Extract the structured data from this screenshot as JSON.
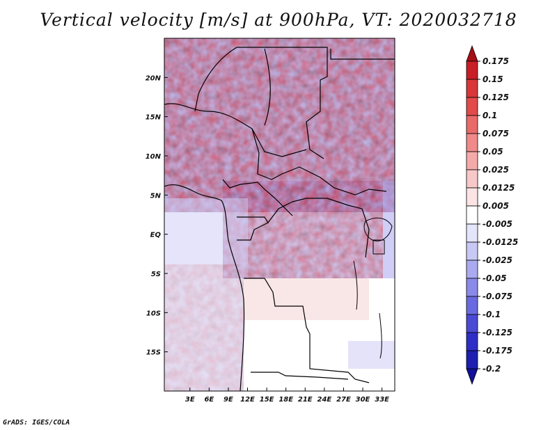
{
  "title": "Vertical velocity [m/s] at 900hPa, VT: 2020032718",
  "credit": "GrADS: IGES/COLA",
  "map": {
    "lon_range": [
      -1,
      35
    ],
    "lat_range": [
      -20,
      25
    ],
    "x_ticks": [
      "3E",
      "6E",
      "9E",
      "12E",
      "15E",
      "18E",
      "21E",
      "24E",
      "27E",
      "30E",
      "33E"
    ],
    "x_tick_values": [
      3,
      6,
      9,
      12,
      15,
      18,
      21,
      24,
      27,
      30,
      33
    ],
    "y_ticks": [
      "20N",
      "15N",
      "10N",
      "5N",
      "EQ",
      "5S",
      "10S",
      "15S"
    ],
    "y_tick_values": [
      20,
      15,
      10,
      5,
      0,
      -5,
      -10,
      -15
    ]
  },
  "colorbar": {
    "labels": [
      "0.175",
      "0.15",
      "0.125",
      "0.1",
      "0.075",
      "0.05",
      "0.025",
      "0.0125",
      "0.005",
      "-0.005",
      "-0.0125",
      "-0.025",
      "-0.05",
      "-0.075",
      "-0.1",
      "-0.125",
      "-0.175",
      "-0.2"
    ],
    "colors": [
      "#a50f15",
      "#c81e26",
      "#d9363a",
      "#e34a4a",
      "#ea6a6a",
      "#f08a8a",
      "#f5aaaa",
      "#f8c8c8",
      "#fde4e4",
      "#ffffff",
      "#e4e4fb",
      "#c8c8f5",
      "#aaaaf0",
      "#8a8aea",
      "#6a6ae0",
      "#4a4ad4",
      "#2e2ec6",
      "#1e1eb0",
      "#10109a"
    ]
  }
}
